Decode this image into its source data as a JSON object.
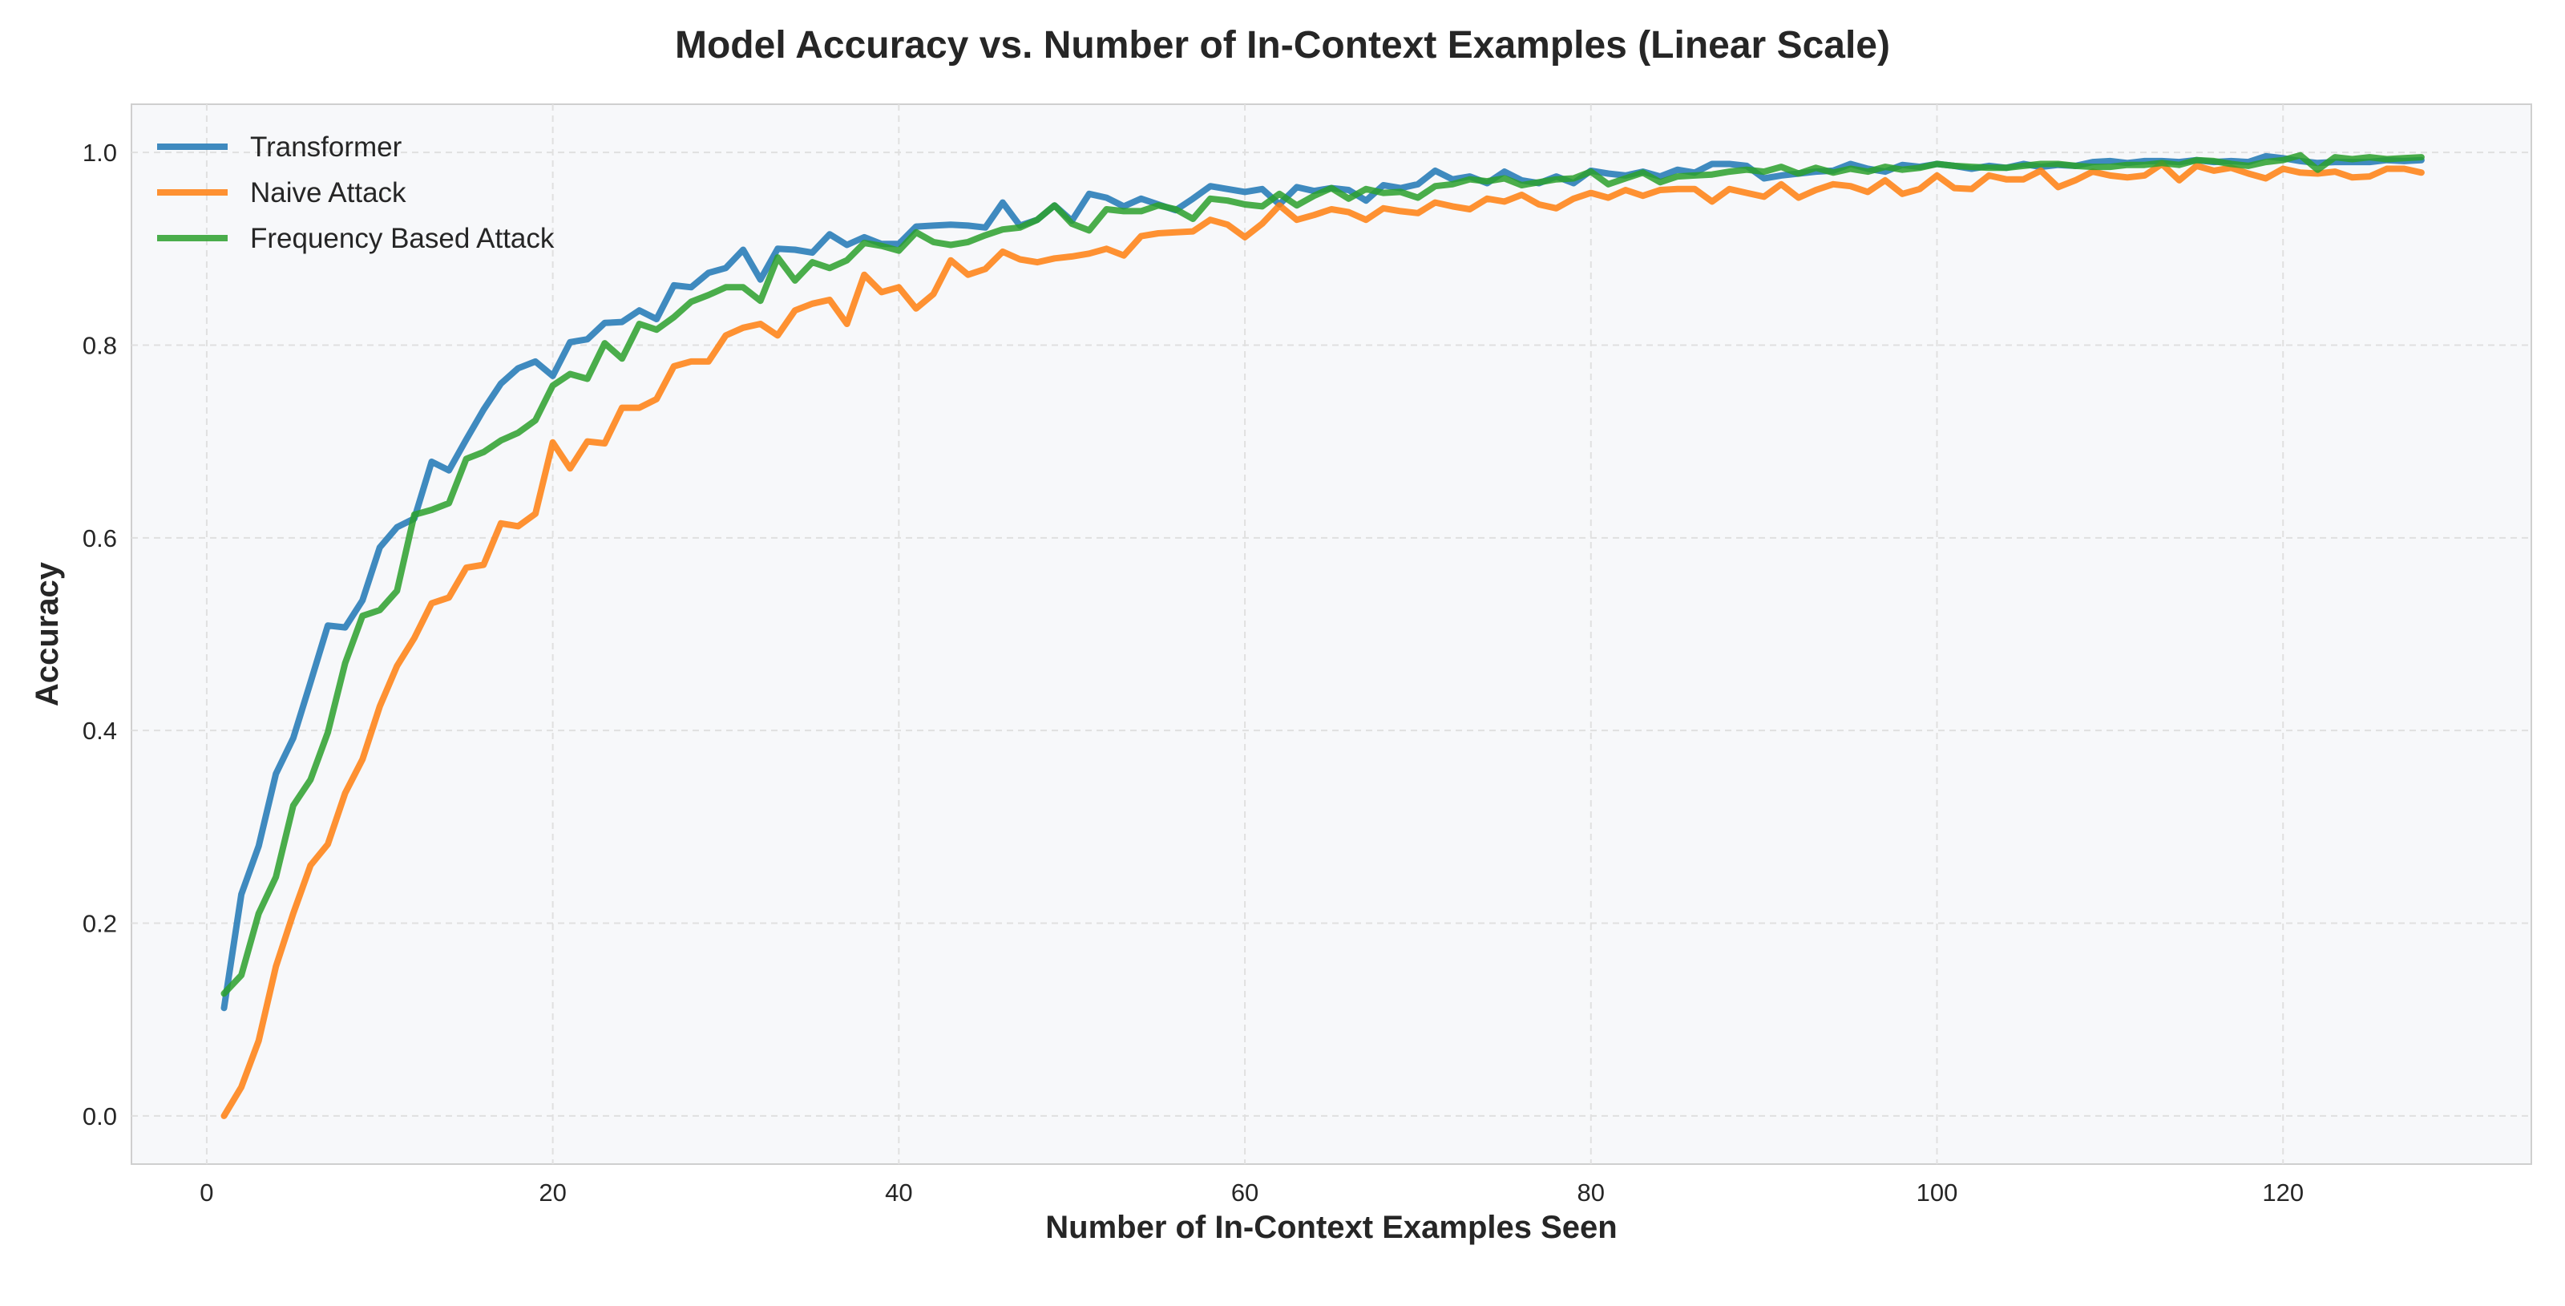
{
  "chart_data": {
    "type": "line",
    "title": "Model Accuracy vs. Number of In-Context Examples (Linear Scale)",
    "xlabel": "Number of In-Context Examples Seen",
    "ylabel": "Accuracy",
    "xlim": [
      -4.35,
      134.35
    ],
    "ylim": [
      -0.05,
      1.05
    ],
    "xticks": [
      0,
      20,
      40,
      60,
      80,
      100,
      120
    ],
    "yticks": [
      0.0,
      0.2,
      0.4,
      0.6,
      0.8,
      1.0
    ],
    "xtick_labels": [
      "0",
      "20",
      "40",
      "60",
      "80",
      "100",
      "120"
    ],
    "ytick_labels": [
      "0.0",
      "0.2",
      "0.4",
      "0.6",
      "0.8",
      "1.0"
    ],
    "grid": true,
    "legend_position": "top-left",
    "x": [
      1,
      2,
      3,
      4,
      5,
      6,
      7,
      8,
      9,
      10,
      11,
      12,
      13,
      14,
      15,
      16,
      17,
      18,
      19,
      20,
      21,
      22,
      23,
      24,
      25,
      26,
      27,
      28,
      29,
      30,
      31,
      32,
      33,
      34,
      35,
      36,
      37,
      38,
      39,
      40,
      41,
      42,
      43,
      44,
      45,
      46,
      47,
      48,
      49,
      50,
      51,
      52,
      53,
      54,
      55,
      56,
      57,
      58,
      59,
      60,
      61,
      62,
      63,
      64,
      65,
      66,
      67,
      68,
      69,
      70,
      71,
      72,
      73,
      74,
      75,
      76,
      77,
      78,
      79,
      80,
      81,
      82,
      83,
      84,
      85,
      86,
      87,
      88,
      89,
      90,
      91,
      92,
      93,
      94,
      95,
      96,
      97,
      98,
      99,
      100,
      101,
      102,
      103,
      104,
      105,
      106,
      107,
      108,
      109,
      110,
      111,
      112,
      113,
      114,
      115,
      116,
      117,
      118,
      119,
      120,
      121,
      122,
      123,
      124,
      125,
      126,
      127,
      128
    ],
    "series": [
      {
        "name": "Transformer",
        "color": "#1f77b4",
        "values": [
          0.112,
          0.23,
          0.28,
          0.355,
          0.392,
          0.45,
          0.509,
          0.507,
          0.535,
          0.59,
          0.611,
          0.62,
          0.679,
          0.67,
          0.702,
          0.733,
          0.76,
          0.776,
          0.783,
          0.768,
          0.803,
          0.806,
          0.823,
          0.824,
          0.836,
          0.827,
          0.862,
          0.86,
          0.875,
          0.88,
          0.899,
          0.868,
          0.9,
          0.899,
          0.896,
          0.915,
          0.904,
          0.912,
          0.905,
          0.905,
          0.923,
          0.924,
          0.925,
          0.924,
          0.922,
          0.948,
          0.924,
          0.93,
          0.945,
          0.929,
          0.957,
          0.953,
          0.944,
          0.952,
          0.946,
          0.94,
          0.952,
          0.965,
          0.962,
          0.959,
          0.962,
          0.946,
          0.964,
          0.96,
          0.963,
          0.961,
          0.95,
          0.966,
          0.963,
          0.967,
          0.981,
          0.972,
          0.975,
          0.968,
          0.98,
          0.971,
          0.968,
          0.975,
          0.968,
          0.981,
          0.978,
          0.976,
          0.98,
          0.975,
          0.982,
          0.979,
          0.988,
          0.988,
          0.986,
          0.973,
          0.976,
          0.978,
          0.98,
          0.981,
          0.988,
          0.983,
          0.98,
          0.987,
          0.985,
          0.988,
          0.986,
          0.983,
          0.986,
          0.984,
          0.988,
          0.985,
          0.987,
          0.986,
          0.99,
          0.991,
          0.989,
          0.991,
          0.991,
          0.99,
          0.992,
          0.99,
          0.991,
          0.99,
          0.996,
          0.994,
          0.991,
          0.989,
          0.99,
          0.99,
          0.99,
          0.992,
          0.991,
          0.992
        ]
      },
      {
        "name": "Naive Attack",
        "color": "#ff7f0e",
        "values": [
          0.0,
          0.03,
          0.078,
          0.155,
          0.21,
          0.26,
          0.282,
          0.335,
          0.37,
          0.425,
          0.467,
          0.496,
          0.532,
          0.538,
          0.569,
          0.572,
          0.615,
          0.612,
          0.625,
          0.699,
          0.672,
          0.7,
          0.698,
          0.735,
          0.735,
          0.744,
          0.778,
          0.783,
          0.783,
          0.81,
          0.818,
          0.822,
          0.81,
          0.836,
          0.843,
          0.847,
          0.822,
          0.873,
          0.855,
          0.86,
          0.838,
          0.853,
          0.888,
          0.873,
          0.879,
          0.897,
          0.889,
          0.886,
          0.89,
          0.892,
          0.895,
          0.9,
          0.893,
          0.913,
          0.916,
          0.917,
          0.918,
          0.93,
          0.925,
          0.912,
          0.926,
          0.945,
          0.93,
          0.935,
          0.941,
          0.938,
          0.93,
          0.942,
          0.939,
          0.937,
          0.948,
          0.944,
          0.941,
          0.952,
          0.949,
          0.956,
          0.946,
          0.942,
          0.952,
          0.958,
          0.953,
          0.961,
          0.955,
          0.961,
          0.962,
          0.962,
          0.949,
          0.962,
          0.958,
          0.954,
          0.967,
          0.953,
          0.961,
          0.967,
          0.965,
          0.959,
          0.971,
          0.957,
          0.962,
          0.976,
          0.963,
          0.962,
          0.976,
          0.972,
          0.972,
          0.981,
          0.964,
          0.971,
          0.98,
          0.976,
          0.974,
          0.976,
          0.988,
          0.971,
          0.986,
          0.981,
          0.984,
          0.978,
          0.973,
          0.983,
          0.979,
          0.978,
          0.98,
          0.974,
          0.975,
          0.983,
          0.983,
          0.979
        ]
      },
      {
        "name": "Frequency Based Attack",
        "color": "#2ca02c",
        "values": [
          0.127,
          0.146,
          0.21,
          0.248,
          0.322,
          0.349,
          0.398,
          0.47,
          0.519,
          0.525,
          0.545,
          0.624,
          0.629,
          0.636,
          0.682,
          0.689,
          0.701,
          0.709,
          0.722,
          0.758,
          0.77,
          0.765,
          0.802,
          0.786,
          0.822,
          0.816,
          0.829,
          0.845,
          0.852,
          0.86,
          0.86,
          0.846,
          0.891,
          0.867,
          0.886,
          0.88,
          0.888,
          0.906,
          0.903,
          0.898,
          0.917,
          0.907,
          0.904,
          0.907,
          0.914,
          0.92,
          0.922,
          0.93,
          0.945,
          0.926,
          0.919,
          0.941,
          0.939,
          0.939,
          0.945,
          0.941,
          0.931,
          0.952,
          0.95,
          0.946,
          0.944,
          0.957,
          0.945,
          0.955,
          0.963,
          0.952,
          0.962,
          0.958,
          0.959,
          0.953,
          0.965,
          0.967,
          0.972,
          0.97,
          0.973,
          0.966,
          0.969,
          0.972,
          0.973,
          0.98,
          0.967,
          0.973,
          0.979,
          0.969,
          0.975,
          0.976,
          0.977,
          0.98,
          0.982,
          0.98,
          0.985,
          0.978,
          0.984,
          0.979,
          0.983,
          0.98,
          0.985,
          0.982,
          0.984,
          0.988,
          0.986,
          0.985,
          0.984,
          0.984,
          0.986,
          0.988,
          0.988,
          0.986,
          0.985,
          0.985,
          0.987,
          0.987,
          0.989,
          0.987,
          0.992,
          0.991,
          0.988,
          0.986,
          0.99,
          0.992,
          0.997,
          0.982,
          0.995,
          0.993,
          0.995,
          0.993,
          0.994,
          0.995
        ]
      }
    ]
  }
}
